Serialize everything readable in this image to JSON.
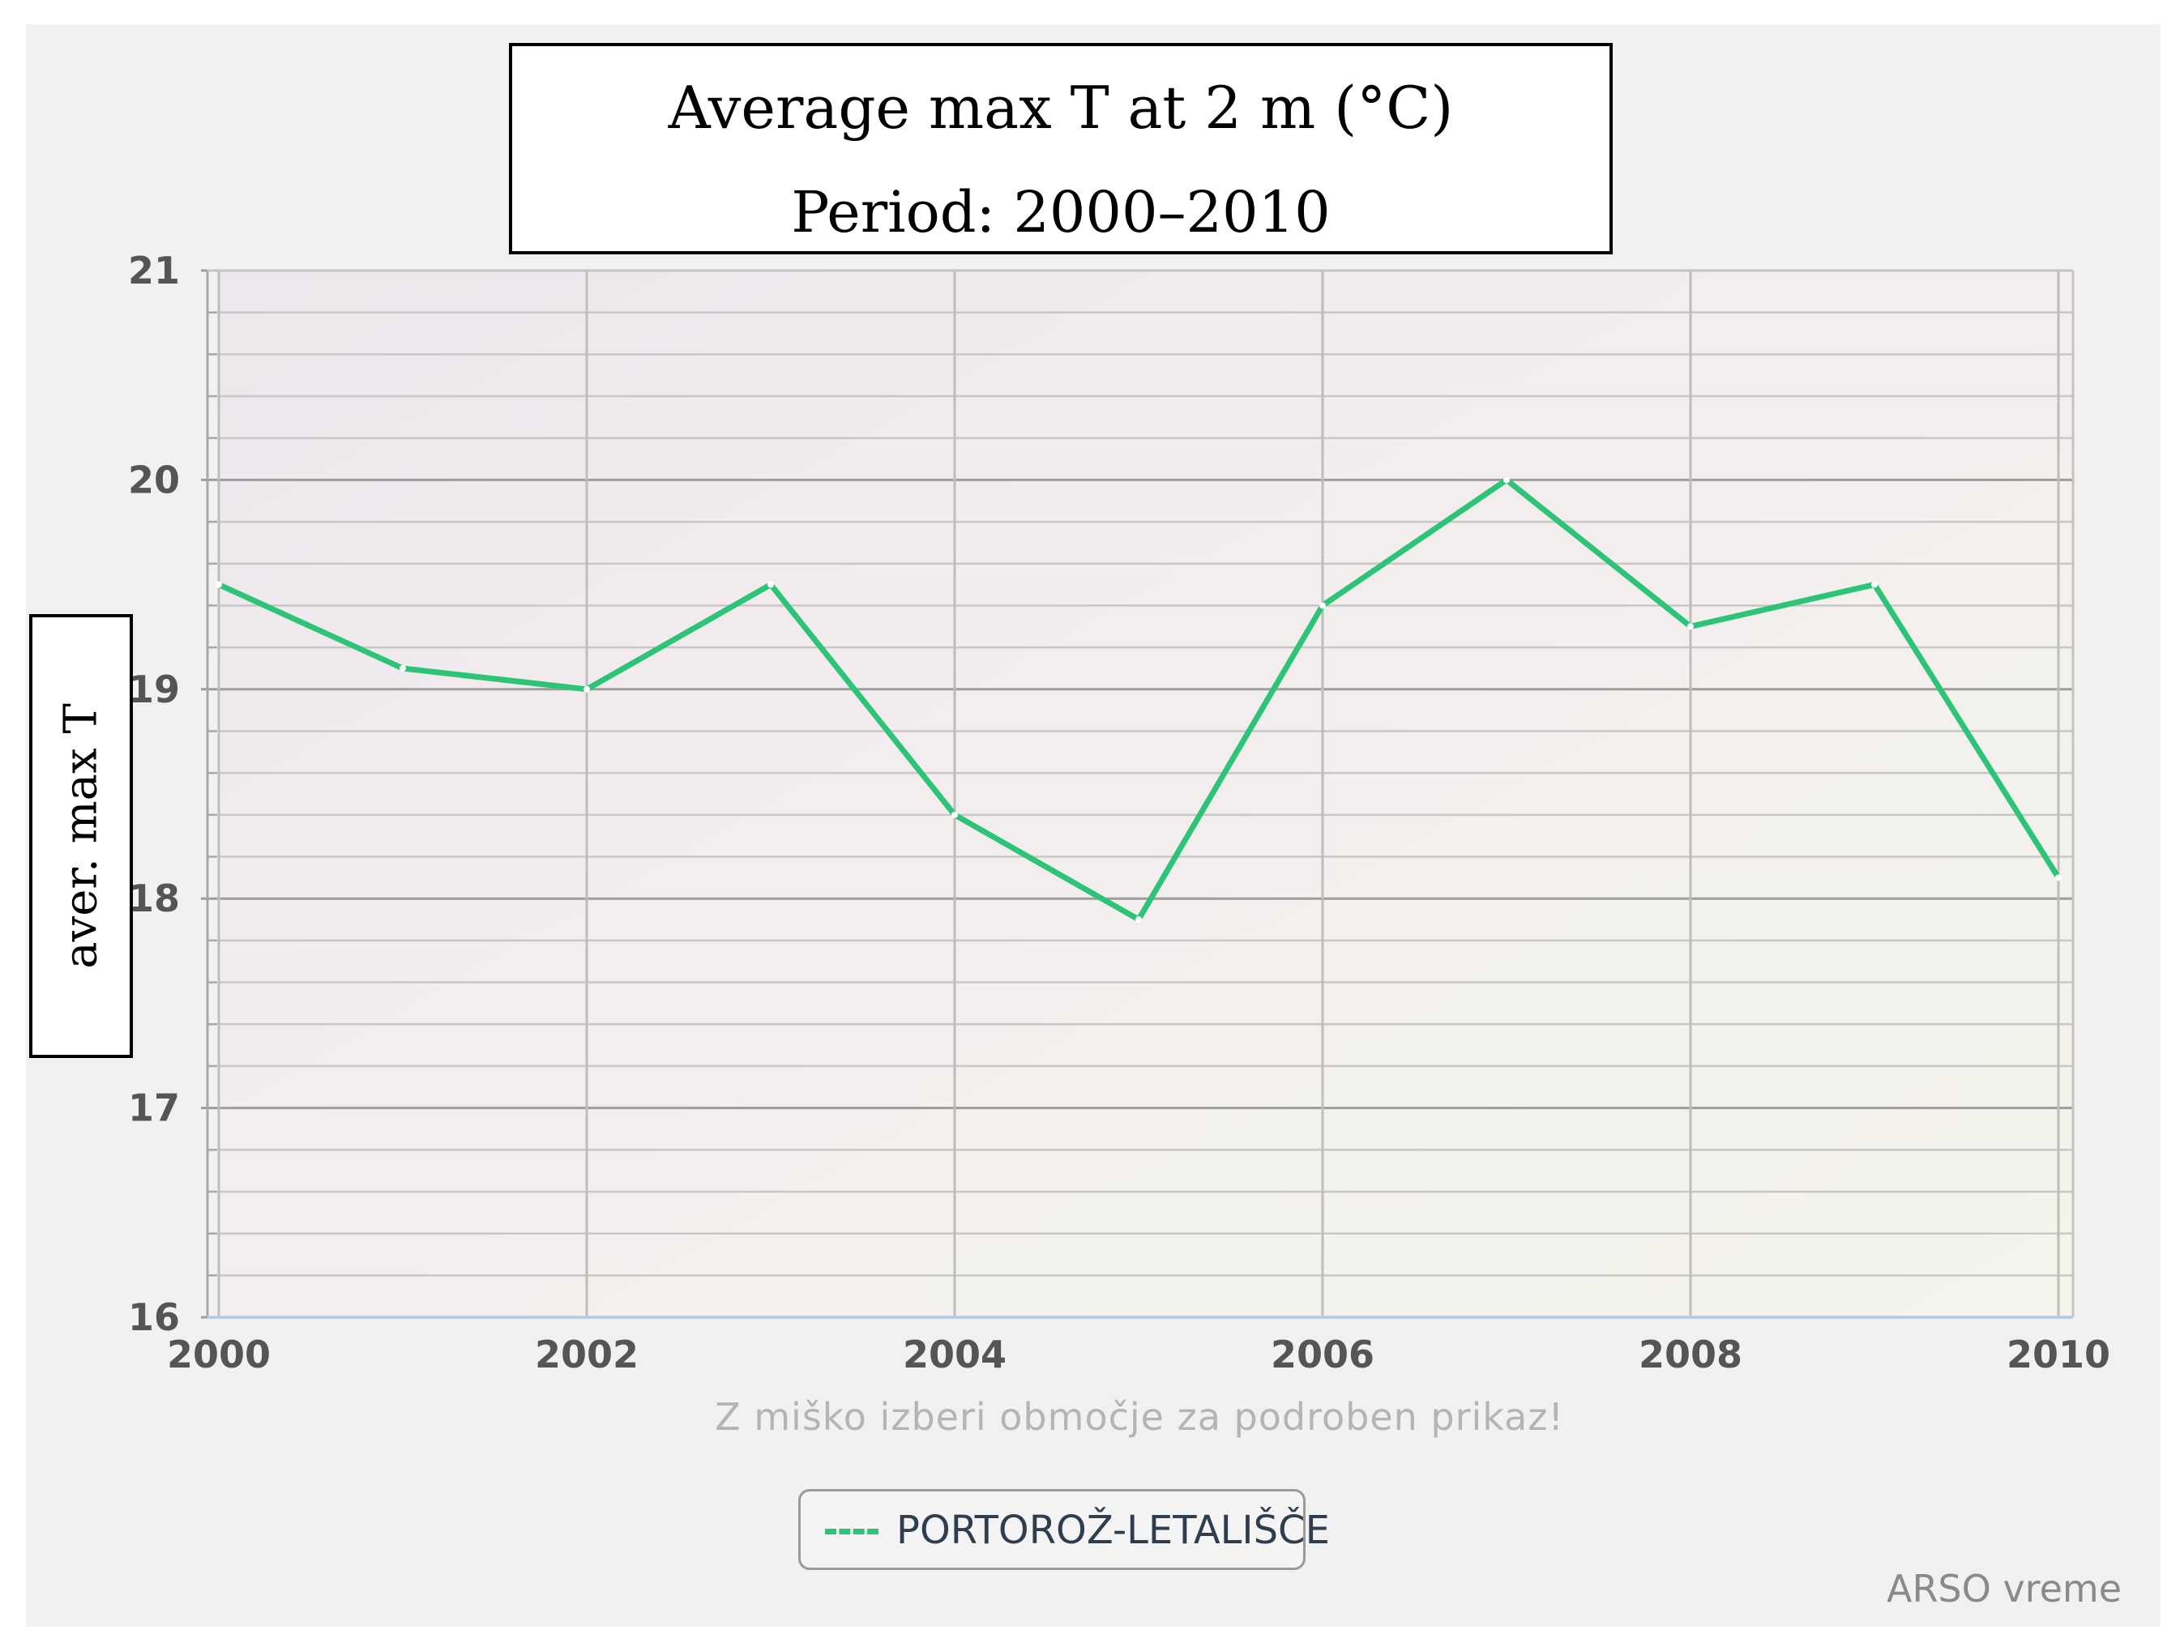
{
  "chart_data": {
    "type": "line",
    "title": "Average max T at 2 m (°C)",
    "subtitle": "Period: 2000–2010",
    "xlabel": "",
    "ylabel": "aver. max T",
    "xlim": [
      2000,
      2010
    ],
    "ylim": [
      16,
      21
    ],
    "x_ticks": [
      2000,
      2002,
      2004,
      2006,
      2008,
      2010
    ],
    "y_ticks": [
      16,
      17,
      18,
      19,
      20,
      21
    ],
    "grid": true,
    "series": [
      {
        "name": "PORTOROŽ-LETALIŠČE",
        "color": "#2ec477",
        "x": [
          2000,
          2001,
          2002,
          2003,
          2004,
          2005,
          2006,
          2007,
          2008,
          2009,
          2010
        ],
        "values": [
          19.5,
          19.1,
          19.0,
          19.5,
          18.4,
          17.9,
          19.4,
          20.0,
          19.3,
          19.5,
          18.1
        ]
      }
    ],
    "legend_position": "bottom-center",
    "hint": "Z miško izberi območje za podroben prikaz!",
    "credit": "ARSO vreme"
  }
}
